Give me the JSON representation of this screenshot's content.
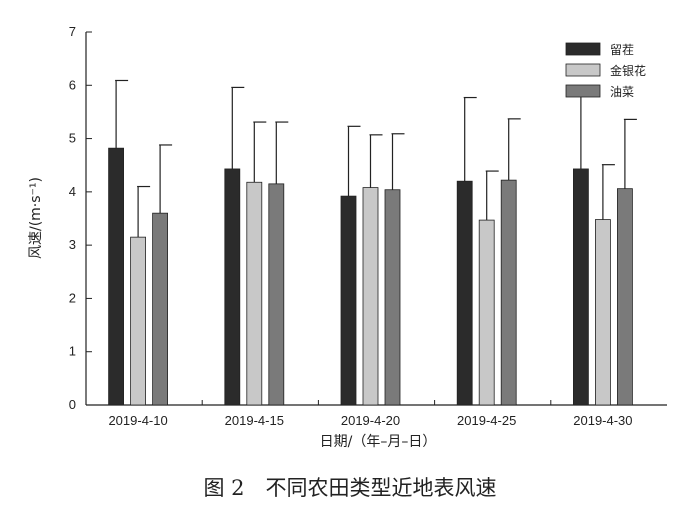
{
  "chart_data": {
    "type": "bar",
    "categories": [
      "2019-4-10",
      "2019-4-15",
      "2019-4-20",
      "2019-4-25",
      "2019-4-30"
    ],
    "series": [
      {
        "name": "留茬",
        "color": "#2b2b2b",
        "values": [
          4.82,
          4.43,
          3.92,
          4.2,
          4.43
        ],
        "errors": [
          1.27,
          1.53,
          1.31,
          1.57,
          1.38
        ]
      },
      {
        "name": "金银花",
        "color": "#c8c8c8",
        "values": [
          3.15,
          4.18,
          4.08,
          3.47,
          3.48
        ],
        "errors": [
          0.95,
          1.13,
          0.99,
          0.92,
          1.03
        ]
      },
      {
        "name": "油菜",
        "color": "#7a7a7a",
        "values": [
          3.6,
          4.15,
          4.04,
          4.22,
          4.06
        ],
        "errors": [
          1.28,
          1.16,
          1.05,
          1.15,
          1.3
        ]
      }
    ],
    "ylim": [
      0,
      7
    ],
    "yticks": [
      0,
      1,
      2,
      3,
      4,
      5,
      6,
      7
    ],
    "xlabel": "日期/（年–月–日）",
    "ylabel": "风速/(m·s⁻¹)",
    "legend_position": "top-right",
    "grid": false,
    "caption": "图 2　不同农田类型近地表风速"
  }
}
